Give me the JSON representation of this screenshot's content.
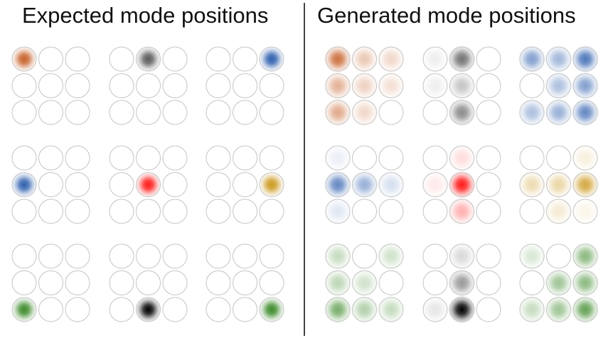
{
  "panels": {
    "left": {
      "title": "Expected mode positions"
    },
    "right": {
      "title": "Generated mode positions"
    }
  },
  "grid": {
    "rows": 3,
    "cols": 3
  },
  "colors": {
    "orange": "#c8622a",
    "gray": "#5a5a5a",
    "blue": "#2f5fae",
    "red": "#ff1a1a",
    "gold": "#cc9a20",
    "green": "#3d8a2a",
    "black": "#000000",
    "ring": "#c4c4c4"
  },
  "blocks": [
    {
      "color": "orange",
      "expected": [
        0,
        0
      ],
      "generated": [
        [
          0,
          0,
          0.9
        ],
        [
          0,
          1,
          0.35
        ],
        [
          1,
          0,
          0.5
        ],
        [
          1,
          1,
          0.3
        ],
        [
          2,
          0,
          0.55
        ],
        [
          2,
          1,
          0.25
        ],
        [
          0,
          2,
          0.25
        ],
        [
          1,
          2,
          0.2
        ]
      ]
    },
    {
      "color": "gray",
      "expected": [
        0,
        1
      ],
      "generated": [
        [
          0,
          1,
          0.85
        ],
        [
          1,
          1,
          0.35
        ],
        [
          2,
          1,
          0.7
        ],
        [
          0,
          0,
          0.1
        ],
        [
          1,
          0,
          0.1
        ]
      ]
    },
    {
      "color": "blue",
      "expected": [
        0,
        2
      ],
      "generated": [
        [
          0,
          0,
          0.6
        ],
        [
          0,
          1,
          0.45
        ],
        [
          0,
          2,
          0.85
        ],
        [
          1,
          1,
          0.4
        ],
        [
          1,
          2,
          0.6
        ],
        [
          2,
          0,
          0.4
        ],
        [
          2,
          1,
          0.5
        ],
        [
          2,
          2,
          0.75
        ]
      ]
    },
    {
      "color": "blue",
      "expected": [
        1,
        0
      ],
      "generated": [
        [
          1,
          0,
          0.75
        ],
        [
          1,
          1,
          0.5
        ],
        [
          1,
          2,
          0.2
        ],
        [
          0,
          0,
          0.1
        ],
        [
          2,
          0,
          0.15
        ]
      ]
    },
    {
      "color": "red",
      "expected": [
        1,
        1
      ],
      "generated": [
        [
          1,
          1,
          1.0
        ],
        [
          2,
          1,
          0.35
        ],
        [
          0,
          1,
          0.15
        ],
        [
          1,
          0,
          0.1
        ]
      ]
    },
    {
      "color": "gold",
      "expected": [
        1,
        2
      ],
      "generated": [
        [
          1,
          0,
          0.35
        ],
        [
          1,
          1,
          0.4
        ],
        [
          1,
          2,
          0.85
        ],
        [
          0,
          2,
          0.15
        ],
        [
          2,
          1,
          0.2
        ],
        [
          2,
          2,
          0.1
        ]
      ]
    },
    {
      "color": "green",
      "expected": [
        2,
        0
      ],
      "generated": [
        [
          2,
          0,
          0.7
        ],
        [
          2,
          1,
          0.4
        ],
        [
          1,
          0,
          0.35
        ],
        [
          1,
          1,
          0.25
        ],
        [
          0,
          0,
          0.3
        ],
        [
          0,
          2,
          0.25
        ],
        [
          2,
          2,
          0.3
        ]
      ]
    },
    {
      "color": "black",
      "expected": [
        2,
        1
      ],
      "generated": [
        [
          2,
          1,
          1.0
        ],
        [
          1,
          1,
          0.4
        ],
        [
          0,
          1,
          0.15
        ],
        [
          2,
          0,
          0.1
        ]
      ]
    },
    {
      "color": "green",
      "expected": [
        2,
        2
      ],
      "generated": [
        [
          0,
          2,
          0.6
        ],
        [
          1,
          1,
          0.5
        ],
        [
          1,
          2,
          0.6
        ],
        [
          2,
          1,
          0.5
        ],
        [
          2,
          2,
          0.8
        ],
        [
          0,
          0,
          0.2
        ],
        [
          2,
          0,
          0.3
        ]
      ]
    }
  ]
}
